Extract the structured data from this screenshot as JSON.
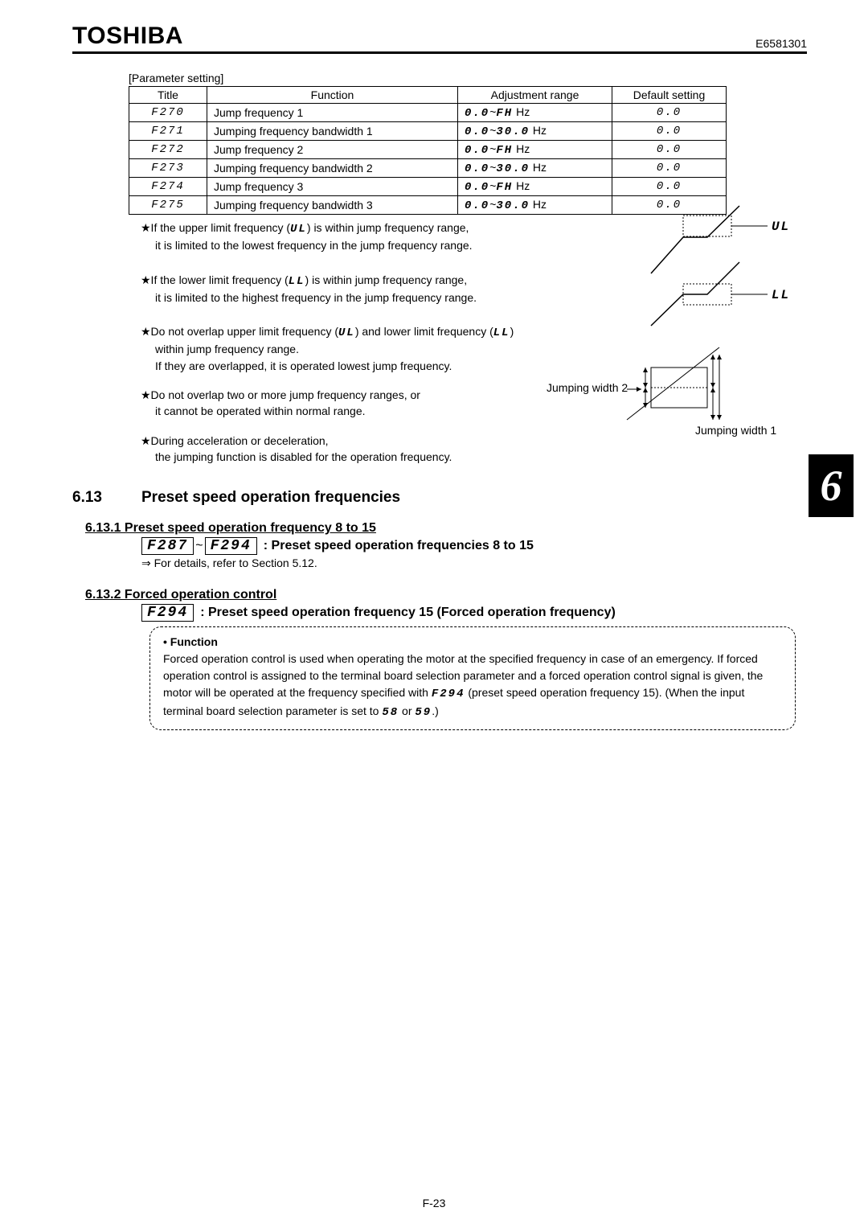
{
  "header": {
    "brand": "TOSHIBA",
    "doc_id": "E6581301"
  },
  "param_section_label": "[Parameter setting]",
  "table": {
    "columns": [
      "Title",
      "Function",
      "Adjustment range",
      "Default setting"
    ],
    "rows": [
      {
        "title": "F270",
        "func": "Jump frequency 1",
        "range_lo": "0.0",
        "range_hi": "FH",
        "unit": "Hz",
        "def": "0.0"
      },
      {
        "title": "F271",
        "func": "Jumping frequency bandwidth 1",
        "range_lo": "0.0",
        "range_hi": "30.0",
        "unit": "Hz",
        "def": "0.0"
      },
      {
        "title": "F272",
        "func": "Jump frequency 2",
        "range_lo": "0.0",
        "range_hi": "FH",
        "unit": "Hz",
        "def": "0.0"
      },
      {
        "title": "F273",
        "func": "Jumping frequency bandwidth 2",
        "range_lo": "0.0",
        "range_hi": "30.0",
        "unit": "Hz",
        "def": "0.0"
      },
      {
        "title": "F274",
        "func": "Jump frequency 3",
        "range_lo": "0.0",
        "range_hi": "FH",
        "unit": "Hz",
        "def": "0.0"
      },
      {
        "title": "F275",
        "func": "Jumping frequency bandwidth 3",
        "range_lo": "0.0",
        "range_hi": "30.0",
        "unit": "Hz",
        "def": "0.0"
      }
    ]
  },
  "notes": {
    "n1a": "★If the upper limit frequency (",
    "n1b": ") is within jump frequency range,",
    "n1c": "it is limited to the lowest frequency in the jump frequency range.",
    "n2a": "★If the lower limit frequency (",
    "n2b": ") is within jump frequency range,",
    "n2c": "it is limited to the highest frequency in the jump frequency range.",
    "n3a": "★Do not overlap upper limit frequency (",
    "n3b": ") and lower limit frequency (",
    "n3c": ")",
    "n3d": "within jump frequency range.",
    "n3e": "If they are overlapped, it is operated lowest jump frequency.",
    "n4a": "★Do not overlap two or more jump frequency ranges, or",
    "n4b": "it cannot be operated within normal range.",
    "n5a": "★During acceleration or deceleration,",
    "n5b": "the jumping function is disabled for the operation frequency.",
    "ul": "UL",
    "ll": "LL"
  },
  "diagram_labels": {
    "ul": "UL",
    "ll": "LL",
    "jw1": "Jumping width 1",
    "jw2": "Jumping width 2"
  },
  "section613": {
    "num": "6.13",
    "title": "Preset speed operation frequencies"
  },
  "section6131": {
    "head": "6.13.1 Preset speed operation frequency 8 to 15",
    "code1": "F287",
    "code2": "F294",
    "desc": ": Preset speed operation frequencies 8 to 15",
    "arrow_text": "⇒ For details, refer to Section 5.12."
  },
  "section6132": {
    "head": "6.13.2 Forced operation control",
    "code": "F294",
    "desc": ": Preset speed operation frequency 15 (Forced operation frequency)",
    "func_title": "• Function",
    "body_a": "Forced operation control is used when operating the motor at the specified frequency in case of an emergency. If forced operation control is assigned to the terminal board selection parameter and a forced operation control signal is given, the motor will be operated at the frequency specified with ",
    "code_inline": "F294",
    "body_b": " (preset speed operation frequency 15). (When the input terminal board selection parameter is set to ",
    "code58": "58",
    "or": " or ",
    "code59": "59",
    "body_c": ".)"
  },
  "chapter_tab": "6",
  "footer": "F-23"
}
